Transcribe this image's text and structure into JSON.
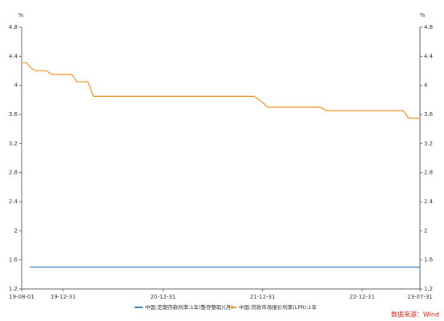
{
  "chart_data": {
    "type": "line",
    "y_unit": "%",
    "y2_unit": "%",
    "x": [
      "2019-08-01",
      "2019-08-20",
      "2019-09-01",
      "2019-09-20",
      "2019-10-31",
      "2019-11-20",
      "2020-01-31",
      "2020-02-20",
      "2020-03-31",
      "2020-04-20",
      "2021-11-30",
      "2021-12-20",
      "2022-01-20",
      "2022-07-31",
      "2022-08-22",
      "2023-05-31",
      "2023-06-20",
      "2023-07-31"
    ],
    "series": [
      {
        "name": "中国:定期存款利率:1年(整存整取)(月)",
        "color": "#2e75b6",
        "values": [
          null,
          null,
          1.5,
          1.5,
          1.5,
          1.5,
          1.5,
          1.5,
          1.5,
          1.5,
          1.5,
          1.5,
          1.5,
          1.5,
          1.5,
          1.5,
          1.5,
          1.5
        ]
      },
      {
        "name": "中国:贷款市场报价利率(LPR):1年",
        "color": "#f0962e",
        "values": [
          4.31,
          4.31,
          4.25,
          4.2,
          4.2,
          4.15,
          4.15,
          4.05,
          4.05,
          3.85,
          3.85,
          3.8,
          3.7,
          3.7,
          3.65,
          3.65,
          3.55,
          3.55
        ]
      }
    ],
    "xlim": [
      "2019-08-01",
      "2023-07-31"
    ],
    "xticks": [
      {
        "value": "2019-08-01",
        "label": "19-08-01"
      },
      {
        "value": "2019-12-31",
        "label": "19-12-31"
      },
      {
        "value": "2020-12-31",
        "label": "20-12-31"
      },
      {
        "value": "2021-12-31",
        "label": "21-12-31"
      },
      {
        "value": "2022-12-31",
        "label": "22-12-31"
      },
      {
        "value": "2023-07-31",
        "label": "23-07-31"
      }
    ],
    "ylim": [
      1.2,
      4.8
    ],
    "yticks": [
      1.2,
      1.6,
      2,
      2.4,
      2.8,
      3.2,
      3.6,
      4,
      4.4,
      4.8
    ],
    "y2lim": [
      1.2,
      4.8
    ],
    "y2ticks": [
      1.2,
      1.6,
      2,
      2.4,
      2.8,
      3.2,
      3.6,
      4,
      4.4,
      4.8
    ],
    "source": "数据来源：Wind"
  }
}
